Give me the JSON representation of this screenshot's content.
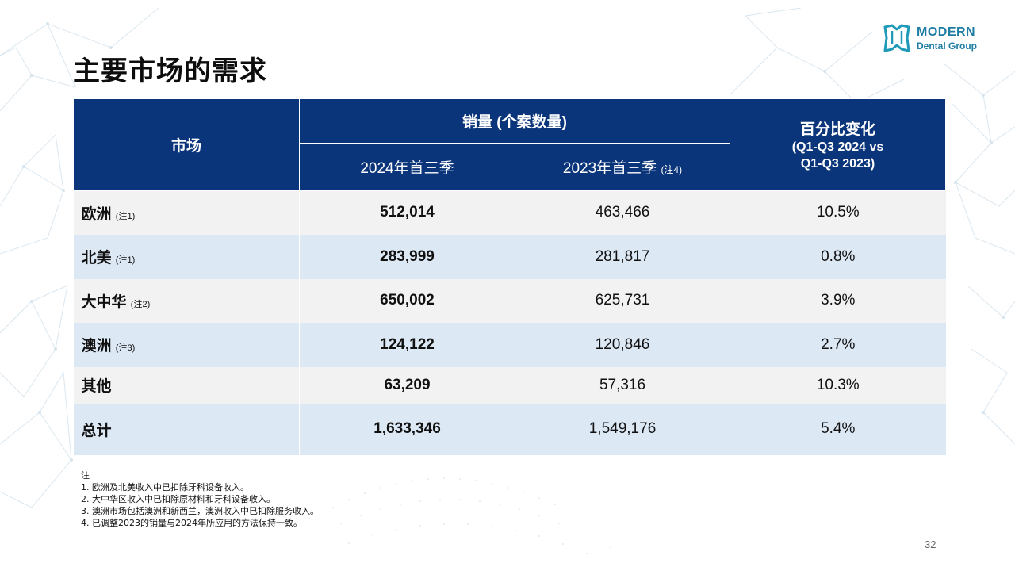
{
  "slide": {
    "title": "主要市场的需求",
    "page_number": "32"
  },
  "logo": {
    "line1": "MODERN",
    "line2": "Dental Group",
    "brand_color": "#1f7da4"
  },
  "table": {
    "header": {
      "market": "市场",
      "sales_volume": "销量 (个案数量)",
      "year_2024": "2024年首三季",
      "year_2023": "2023年首三季",
      "year_2023_note": "(注4)",
      "change_line1": "百分比变化",
      "change_line2": "(Q1-Q3 2024 vs",
      "change_line3": "Q1-Q3 2023)"
    },
    "rows": [
      {
        "market": "欧洲",
        "note": "(注1)",
        "v2024": "512,014",
        "v2023": "463,466",
        "change": "10.5%"
      },
      {
        "market": "北美",
        "note": "(注1)",
        "v2024": "283,999",
        "v2023": "281,817",
        "change": "0.8%"
      },
      {
        "market": "大中华",
        "note": "(注2)",
        "v2024": "650,002",
        "v2023": "625,731",
        "change": "3.9%"
      },
      {
        "market": "澳洲",
        "note": "(注3)",
        "v2024": "124,122",
        "v2023": "120,846",
        "change": "2.7%"
      },
      {
        "market": "其他",
        "note": "",
        "v2024": "63,209",
        "v2023": "57,316",
        "change": "10.3%"
      },
      {
        "market": "总计",
        "note": "",
        "v2024": "1,633,346",
        "v2023": "1,549,176",
        "change": "5.4%"
      }
    ],
    "header_color": "#0b357a",
    "row_color_odd": "#f2f2f2",
    "row_color_even": "#dde8f5"
  },
  "notes": {
    "heading": "注",
    "items": [
      "1. 欧洲及北美收入中已扣除牙科设备收入。",
      "2. 大中华区收入中已扣除原材料和牙科设备收入。",
      "3. 澳洲市场包括澳洲和新西兰，澳洲收入中已扣除服务收入。",
      "4. 已调整2023的销量与2024年所应用的方法保持一致。"
    ]
  }
}
